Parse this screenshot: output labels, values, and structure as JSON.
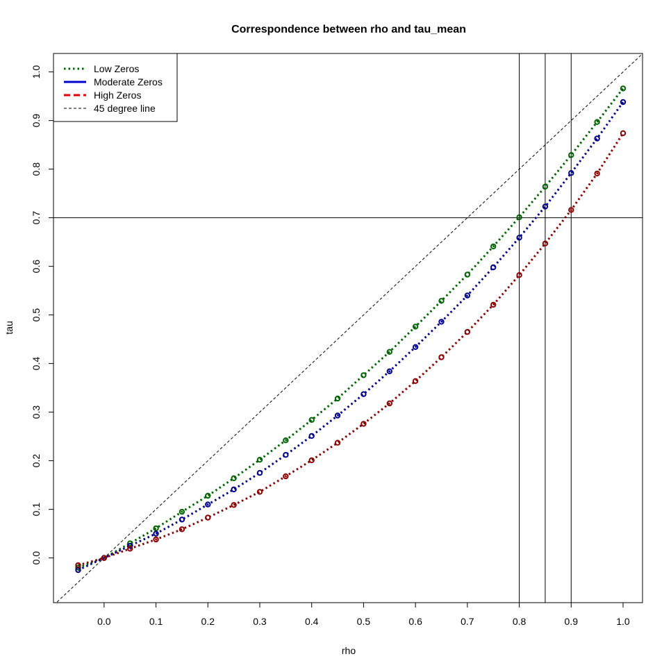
{
  "chart_data": {
    "type": "line",
    "title": "Correspondence between rho and tau_mean",
    "xlabel": "rho",
    "ylabel": "tau",
    "xlim": [
      -0.0975,
      1.0375
    ],
    "ylim": [
      -0.092,
      1.038
    ],
    "x_ticks": [
      "0.0",
      "0.1",
      "0.2",
      "0.3",
      "0.4",
      "0.5",
      "0.6",
      "0.7",
      "0.8",
      "0.9",
      "1.0"
    ],
    "y_ticks": [
      "0.0",
      "0.1",
      "0.2",
      "0.3",
      "0.4",
      "0.5",
      "0.6",
      "0.7",
      "0.8",
      "0.9",
      "1.0"
    ],
    "x": [
      -0.05,
      0.0,
      0.05,
      0.1,
      0.15,
      0.2,
      0.25,
      0.3,
      0.35,
      0.4,
      0.45,
      0.5,
      0.55,
      0.6,
      0.65,
      0.7,
      0.75,
      0.8,
      0.85,
      0.9,
      0.95,
      1.0
    ],
    "series": [
      {
        "name": "Low Zeros",
        "color": "#006400",
        "values": [
          -0.02,
          0.0,
          0.03,
          0.061,
          0.095,
          0.128,
          0.164,
          0.202,
          0.242,
          0.284,
          0.328,
          0.376,
          0.424,
          0.476,
          0.529,
          0.583,
          0.641,
          0.701,
          0.764,
          0.829,
          0.897,
          0.966
        ]
      },
      {
        "name": "Moderate Zeros",
        "color": "#00008b",
        "values": [
          -0.025,
          0.0,
          0.025,
          0.05,
          0.079,
          0.11,
          0.141,
          0.175,
          0.212,
          0.251,
          0.293,
          0.337,
          0.384,
          0.434,
          0.486,
          0.54,
          0.598,
          0.659,
          0.723,
          0.792,
          0.863,
          0.938
        ]
      },
      {
        "name": "High Zeros",
        "color": "#8b0000",
        "values": [
          -0.015,
          0.0,
          0.019,
          0.038,
          0.059,
          0.083,
          0.109,
          0.136,
          0.168,
          0.201,
          0.237,
          0.276,
          0.318,
          0.364,
          0.413,
          0.465,
          0.521,
          0.582,
          0.647,
          0.716,
          0.791,
          0.874
        ]
      }
    ],
    "reference_lines": {
      "diagonal": "45 degree line",
      "horizontal_y": [
        0.7
      ],
      "vertical_x": [
        0.8,
        0.85,
        0.9
      ]
    },
    "legend": {
      "placement": "top-left",
      "entries": [
        {
          "label": "Low Zeros",
          "color": "#006400",
          "style": "dotted"
        },
        {
          "label": "Moderate Zeros",
          "color": "#0000cd",
          "style": "solid"
        },
        {
          "label": "High Zeros",
          "color": "#dd0000",
          "style": "dashed"
        },
        {
          "label": "45 degree line",
          "color": "#000000",
          "style": "thin-dashed"
        }
      ]
    },
    "grid": false
  }
}
